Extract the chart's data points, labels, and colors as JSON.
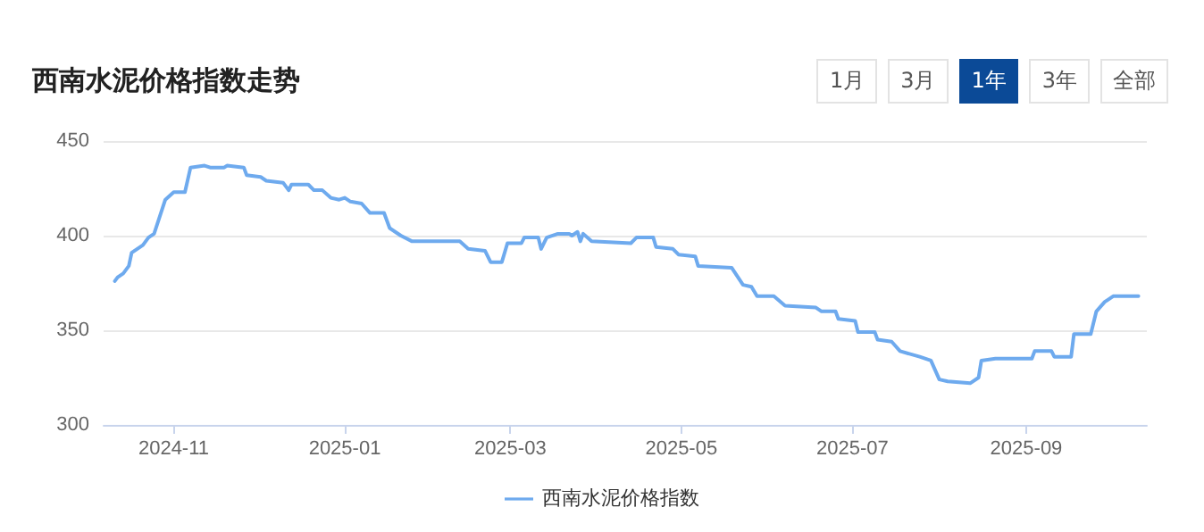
{
  "chart_data": {
    "type": "line",
    "title": "西南水泥价格指数走势",
    "annotations": [
      "1月",
      "3月",
      "1年",
      "3年",
      "全部"
    ],
    "series": [
      {
        "name": "西南水泥价格指数",
        "color": "#6eaaee",
        "x": [
          "2024-10-11",
          "2024-10-12",
          "2024-10-14",
          "2024-10-16",
          "2024-10-17",
          "2024-10-21",
          "2024-10-23",
          "2024-10-25",
          "2024-10-29",
          "2024-11-01",
          "2024-11-05",
          "2024-11-07",
          "2024-11-12",
          "2024-11-14",
          "2024-11-19",
          "2024-11-20",
          "2024-11-26",
          "2024-11-27",
          "2024-12-02",
          "2024-12-04",
          "2024-12-10",
          "2024-12-12",
          "2024-12-13",
          "2024-12-19",
          "2024-12-21",
          "2024-12-24",
          "2024-12-27",
          "2024-12-30",
          "2025-01-01",
          "2025-01-03",
          "2025-01-07",
          "2025-01-10",
          "2025-01-15",
          "2025-01-17",
          "2025-01-21",
          "2025-01-25",
          "2025-02-11",
          "2025-02-14",
          "2025-02-20",
          "2025-02-22",
          "2025-02-26",
          "2025-02-28",
          "2025-03-05",
          "2025-03-06",
          "2025-03-11",
          "2025-03-12",
          "2025-03-14",
          "2025-03-18",
          "2025-03-22",
          "2025-03-23",
          "2025-03-25",
          "2025-03-26",
          "2025-03-27",
          "2025-03-30",
          "2025-04-13",
          "2025-04-15",
          "2025-04-21",
          "2025-04-22",
          "2025-04-28",
          "2025-04-30",
          "2025-05-06",
          "2025-05-07",
          "2025-05-19",
          "2025-05-23",
          "2025-05-26",
          "2025-05-28",
          "2025-06-03",
          "2025-06-07",
          "2025-06-18",
          "2025-06-20",
          "2025-06-25",
          "2025-06-26",
          "2025-07-02",
          "2025-07-03",
          "2025-07-09",
          "2025-07-10",
          "2025-07-15",
          "2025-07-18",
          "2025-07-25",
          "2025-07-29",
          "2025-08-01",
          "2025-08-04",
          "2025-08-12",
          "2025-08-15",
          "2025-08-16",
          "2025-08-21",
          "2025-09-03",
          "2025-09-04",
          "2025-09-10",
          "2025-09-11",
          "2025-09-17",
          "2025-09-18",
          "2025-09-24",
          "2025-09-26",
          "2025-09-29",
          "2025-09-30",
          "2025-10-02",
          "2025-10-11"
        ],
        "values": [
          376,
          378,
          380,
          384,
          391,
          395,
          399,
          401,
          419,
          423,
          423,
          436,
          437,
          436,
          436,
          437,
          436,
          432,
          431,
          429,
          428,
          424,
          427,
          427,
          424,
          424,
          420,
          419,
          420,
          418,
          417,
          412,
          412,
          404,
          400,
          397,
          397,
          393,
          392,
          386,
          386,
          396,
          396,
          399,
          399,
          393,
          399,
          401,
          401,
          400,
          402,
          397,
          401,
          397,
          396,
          399,
          399,
          394,
          393,
          390,
          389,
          384,
          383,
          374,
          373,
          368,
          368,
          363,
          362,
          360,
          360,
          356,
          355,
          349,
          349,
          345,
          344,
          339,
          336,
          334,
          324,
          323,
          322,
          325,
          334,
          335,
          335,
          339,
          339,
          336,
          336,
          348,
          348,
          360,
          365,
          366,
          368,
          368
        ]
      }
    ],
    "xlim": [
      "2024-10-07",
      "2025-10-14"
    ],
    "xticks": [
      "2024-11",
      "2025-01",
      "2025-03",
      "2025-05",
      "2025-07",
      "2025-09"
    ],
    "ylim": [
      300,
      450
    ],
    "yticks": [
      300,
      350,
      400,
      450
    ],
    "grid": "y",
    "legend": "bottom",
    "marker": "none",
    "line_style": "solid"
  }
}
